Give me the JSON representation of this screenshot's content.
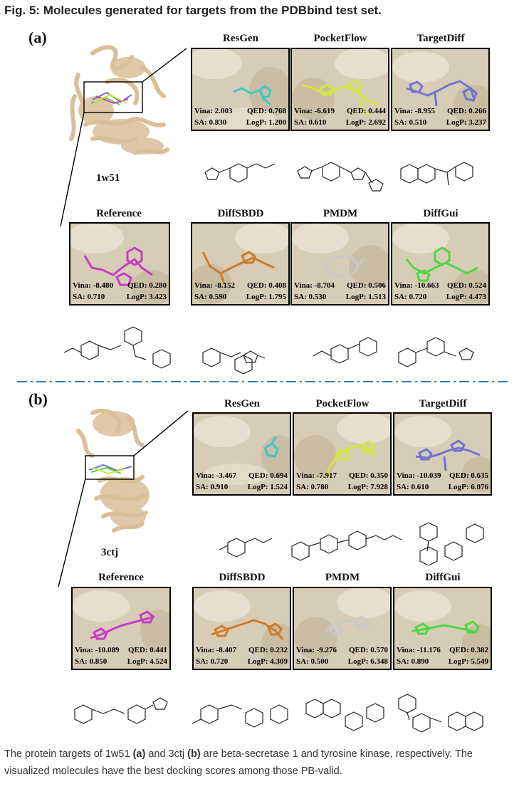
{
  "figure_title": "Fig. 5: Molecules generated for targets from the PDBbind test set.",
  "sections": [
    {
      "label": "(a)",
      "protein_id": "1w51",
      "panels": [
        {
          "method": "ResGen",
          "vina": "Vina: 2.003",
          "qed": "QED: 0.768",
          "sa": "SA: 0.830",
          "logp": "LogP: 1.200",
          "color": "#3fc9c4"
        },
        {
          "method": "PocketFlow",
          "vina": "Vina: -6.619",
          "qed": "QED: 0.444",
          "sa": "SA: 0.610",
          "logp": "LogP: 2.692",
          "color": "#d7e63a"
        },
        {
          "method": "TargetDiff",
          "vina": "Vina: -8.955",
          "qed": "QED: 0.266",
          "sa": "SA: 0.510",
          "logp": "LogP: 3.237",
          "color": "#6f74d4"
        },
        {
          "method": "Reference",
          "vina": "Vina: -8.480",
          "qed": "QED: 0.280",
          "sa": "SA: 0.710",
          "logp": "LogP: 3.423",
          "color": "#c63dc4"
        },
        {
          "method": "DiffSBDD",
          "vina": "Vina: -8.152",
          "qed": "QED: 0.408",
          "sa": "SA: 0.590",
          "logp": "LogP: 1.795",
          "color": "#d27a26"
        },
        {
          "method": "PMDM",
          "vina": "Vina: -8.704",
          "qed": "QED: 0.506",
          "sa": "SA: 0.530",
          "logp": "LogP: 1.513",
          "color": "#c9c9c9"
        },
        {
          "method": "DiffGui",
          "vina": "Vina: -10.663",
          "qed": "QED: 0.524",
          "sa": "SA: 0.720",
          "logp": "LogP: 4.473",
          "color": "#4fd644"
        }
      ]
    },
    {
      "label": "(b)",
      "protein_id": "3ctj",
      "panels": [
        {
          "method": "ResGen",
          "vina": "Vina: -3.467",
          "qed": "QED: 0.694",
          "sa": "SA: 0.910",
          "logp": "LogP: 1.524",
          "color": "#3fc9c4"
        },
        {
          "method": "PocketFlow",
          "vina": "Vina: -7.917",
          "qed": "QED: 0.350",
          "sa": "SA: 0.780",
          "logp": "LogP: 7.928",
          "color": "#d7e63a"
        },
        {
          "method": "TargetDiff",
          "vina": "Vina: -10.039",
          "qed": "QED: 0.635",
          "sa": "SA: 0.610",
          "logp": "LogP: 6.076",
          "color": "#6f74d4"
        },
        {
          "method": "Reference",
          "vina": "Vina: -10.089",
          "qed": "QED: 0.441",
          "sa": "SA: 0.850",
          "logp": "LogP: 4.524",
          "color": "#c63dc4"
        },
        {
          "method": "DiffSBDD",
          "vina": "Vina: -8.407",
          "qed": "QED: 0.232",
          "sa": "SA: 0.720",
          "logp": "LogP: 4.309",
          "color": "#d27a26"
        },
        {
          "method": "PMDM",
          "vina": "Vina: -9.276",
          "qed": "QED: 0.570",
          "sa": "SA: 0.500",
          "logp": "LogP: 6.348",
          "color": "#c9c9c9"
        },
        {
          "method": "DiffGui",
          "vina": "Vina: -11.176",
          "qed": "QED: 0.382",
          "sa": "SA: 0.890",
          "logp": "LogP: 5.549",
          "color": "#4fd644"
        }
      ]
    }
  ],
  "caption": {
    "part1": "The protein targets of 1w51 ",
    "a": "(a)",
    "part2": " and 3ctj ",
    "b": "(b)",
    "part3": " are beta-secretase 1 and tyrosine kinase, respectively. The visualized molecules have the best docking scores among those PB-valid."
  },
  "colors": {
    "protein": "#d9bf98",
    "surface": "#d6ccb5",
    "divider": "#3e78a8"
  }
}
